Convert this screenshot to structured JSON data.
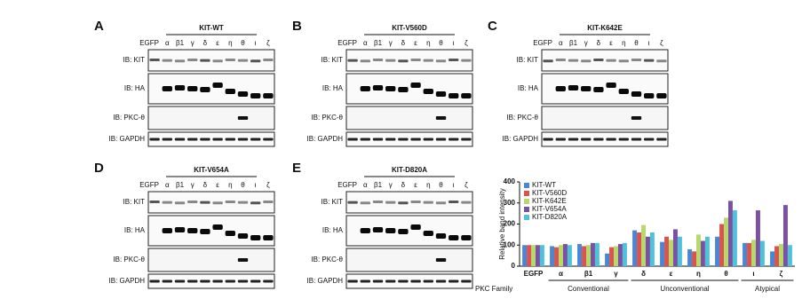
{
  "blots": {
    "lanes": [
      "EGFP",
      "α",
      "β1",
      "γ",
      "δ",
      "ε",
      "η",
      "θ",
      "ι",
      "ζ"
    ],
    "rows": [
      "IB: KIT",
      "IB: HA",
      "IB: PKC-θ",
      "IB: GAPDH"
    ],
    "panels": [
      {
        "letter": "A",
        "title": "KIT-WT"
      },
      {
        "letter": "B",
        "title": "KIT-V560D"
      },
      {
        "letter": "C",
        "title": "KIT-K642E"
      },
      {
        "letter": "D",
        "title": "KIT-V654A"
      },
      {
        "letter": "E",
        "title": "KIT-D820A"
      }
    ]
  },
  "chart_data": {
    "type": "bar",
    "y_label": "Relative band intensity",
    "categories": [
      "EGFP",
      "α",
      "β1",
      "γ",
      "δ",
      "ε",
      "η",
      "θ",
      "ι",
      "ζ"
    ],
    "group_title": "PKC Family",
    "groups": [
      {
        "label": "Conventional",
        "categories": [
          "α",
          "β1",
          "γ"
        ]
      },
      {
        "label": "Unconventional",
        "categories": [
          "δ",
          "ε",
          "η",
          "θ"
        ]
      },
      {
        "label": "Atypical",
        "categories": [
          "ι",
          "ζ"
        ]
      }
    ],
    "series": [
      {
        "name": "KIT-WT",
        "color": "#4a86d4",
        "values": [
          100,
          95,
          105,
          60,
          170,
          115,
          80,
          140,
          110,
          70
        ]
      },
      {
        "name": "KIT-V560D",
        "color": "#d9534f",
        "values": [
          100,
          90,
          95,
          90,
          160,
          140,
          70,
          200,
          110,
          95
        ]
      },
      {
        "name": "KIT-K642E",
        "color": "#b8d86b",
        "values": [
          100,
          100,
          100,
          95,
          195,
          125,
          150,
          230,
          125,
          105
        ]
      },
      {
        "name": "KIT-V654A",
        "color": "#7b52a3",
        "values": [
          100,
          105,
          110,
          105,
          140,
          175,
          120,
          310,
          265,
          290
        ]
      },
      {
        "name": "KIT-D820A",
        "color": "#4fc1d9",
        "values": [
          100,
          100,
          110,
          110,
          160,
          140,
          140,
          265,
          120,
          100
        ]
      }
    ],
    "ylim": [
      0,
      400
    ],
    "yticks": [
      0,
      100,
      200,
      300,
      400
    ],
    "legend": "upper left"
  }
}
